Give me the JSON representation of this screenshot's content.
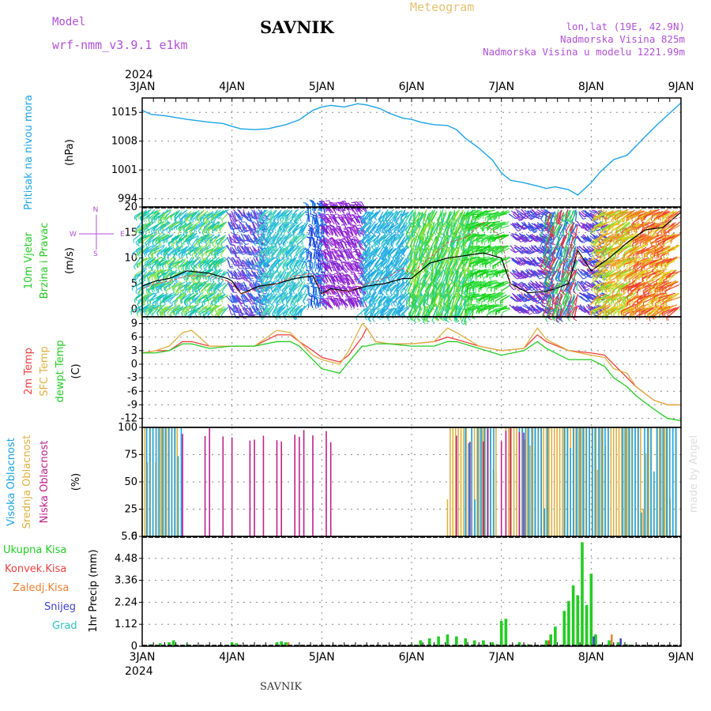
{
  "header": {
    "title": "SAVNIK",
    "meteogram": "Meteogram",
    "model_label": "Model",
    "model_name": "wrf-nmm_v3.9.1 e1km",
    "lonlat": "lon,lat (19E, 42.9N)",
    "elevation": "Nadmorska Visina 825m",
    "model_elevation": "Nadmorska Visina u modelu 1221.99m",
    "watermark": "made by Angel"
  },
  "footer": {
    "station": "SAVNIK"
  },
  "time_axis": {
    "year": "2024",
    "ticks": [
      "3JAN",
      "4JAN",
      "5JAN",
      "6JAN",
      "7JAN",
      "8JAN",
      "9JAN"
    ]
  },
  "colors": {
    "pressure": "#1aa4e8",
    "temp2m": "#f04040",
    "sfc": "#e0b040",
    "dewpt": "#22cc22",
    "high_cloud": "#1aa4e8",
    "mid_cloud": "#e0b040",
    "low_cloud": "#c0208c",
    "total_precip": "#22cc22",
    "convective": "#f04040",
    "frozen": "#f08030",
    "snow": "#4040d0",
    "hail": "#30c0c0"
  },
  "chart_data": [
    {
      "type": "line",
      "panel": "pressure",
      "ylabel": "Pritisak na nivou mora",
      "unit": "(hPa)",
      "yticks": [
        994,
        1001,
        1008,
        1015
      ],
      "ylim": [
        992,
        1018.5
      ],
      "x": [
        0,
        0.1,
        0.25,
        0.5,
        0.75,
        0.9,
        1.0,
        1.1,
        1.25,
        1.4,
        1.6,
        1.75,
        1.9,
        2.0,
        2.1,
        2.25,
        2.4,
        2.5,
        2.65,
        2.75,
        2.9,
        3.0,
        3.1,
        3.25,
        3.4,
        3.5,
        3.6,
        3.75,
        3.9,
        4.0,
        4.1,
        4.25,
        4.4,
        4.5,
        4.6,
        4.75,
        4.85,
        5.0,
        5.1,
        5.25,
        5.4,
        5.5,
        5.6,
        5.75,
        5.9,
        6.0
      ],
      "series": [
        {
          "values": [
            1015.5,
            1014.5,
            1014.2,
            1013.3,
            1012.6,
            1012.3,
            1011.6,
            1011.0,
            1010.8,
            1011.0,
            1012.0,
            1013.2,
            1015.5,
            1016.3,
            1016.7,
            1016.3,
            1017.1,
            1016.8,
            1015.9,
            1014.8,
            1013.6,
            1013.3,
            1012.6,
            1012.0,
            1011.8,
            1010.8,
            1008.7,
            1006.3,
            1003.4,
            1000.3,
            998.5,
            997.9,
            997.1,
            996.5,
            996.9,
            996.2,
            994.9,
            997.9,
            1000.5,
            1003.5,
            1004.6,
            1006.8,
            1009.1,
            1012.3,
            1015.3,
            1017.3
          ]
        }
      ]
    },
    {
      "type": "line",
      "panel": "wind",
      "ylabel": "10m Vjetar",
      "ylabel2": "Brzina i Pravac",
      "unit": "(m/s)",
      "compass": {
        "n": "N",
        "s": "S",
        "e": "E",
        "w": "W"
      },
      "yticks": [
        0,
        5,
        10,
        15,
        20
      ],
      "ylim": [
        -1.5,
        20
      ],
      "x": [
        0,
        0.15,
        0.3,
        0.5,
        0.75,
        0.95,
        1.0,
        1.1,
        1.3,
        1.5,
        1.7,
        1.9,
        2.0,
        2.1,
        2.3,
        2.5,
        2.7,
        2.9,
        3.0,
        3.2,
        3.4,
        3.6,
        3.8,
        4.0,
        4.1,
        4.3,
        4.5,
        4.6,
        4.75,
        4.85,
        5.0,
        5.2,
        5.4,
        5.6,
        5.8,
        6.0
      ],
      "series": [
        {
          "values": [
            4.5,
            5.5,
            6,
            7.5,
            7,
            6,
            5.5,
            3,
            4.5,
            5,
            6,
            6.5,
            3,
            4,
            3.5,
            4.5,
            5,
            6,
            6,
            9,
            10,
            10.5,
            11,
            10,
            5,
            3.2,
            3.5,
            4,
            5,
            11.5,
            7.5,
            10,
            13,
            15.5,
            16,
            19
          ]
        },
        {
          "values": [
            4,
            5,
            5.5,
            6.5,
            6.5,
            5.5,
            5,
            3,
            4,
            5,
            6.5,
            7,
            3,
            3.5,
            3.5,
            5,
            6,
            8,
            7,
            10,
            13,
            14,
            17,
            14,
            5,
            2,
            3,
            4,
            8,
            11,
            7,
            13,
            16,
            16,
            17,
            18
          ]
        }
      ],
      "barbs": [
        {
          "x0": 0.0,
          "x1": 0.95,
          "dir": 220,
          "len": 12,
          "colors": [
            "#10c8a0",
            "#30c0e0",
            "#80e040"
          ]
        },
        {
          "x0": 0.95,
          "x1": 1.35,
          "dir": 300,
          "len": 10,
          "colors": [
            "#3060e8",
            "#8040d8"
          ]
        },
        {
          "x0": 1.35,
          "x1": 1.85,
          "dir": 230,
          "len": 12,
          "colors": [
            "#18b0e8",
            "#30c0d0",
            "#50d8b0"
          ]
        },
        {
          "x0": 1.85,
          "x1": 2.05,
          "dir": 90,
          "len": 10,
          "colors": [
            "#2040e0",
            "#1a80e8"
          ]
        },
        {
          "x0": 2.05,
          "x1": 2.5,
          "dir": 120,
          "len": 11,
          "colors": [
            "#8020d0",
            "#a030d8"
          ]
        },
        {
          "x0": 2.5,
          "x1": 3.0,
          "dir": 230,
          "len": 13,
          "colors": [
            "#20a8e8",
            "#30c0d0"
          ]
        },
        {
          "x0": 3.0,
          "x1": 3.7,
          "dir": 250,
          "len": 15,
          "colors": [
            "#30d040",
            "#80e030",
            "#20d0a0"
          ]
        },
        {
          "x0": 3.7,
          "x1": 4.1,
          "dir": 200,
          "len": 13,
          "colors": [
            "#10d010",
            "#40e050"
          ]
        },
        {
          "x0": 4.1,
          "x1": 4.5,
          "dir": 320,
          "len": 10,
          "colors": [
            "#3050e8",
            "#8030d0"
          ]
        },
        {
          "x0": 4.5,
          "x1": 4.85,
          "dir": 250,
          "len": 13,
          "colors": [
            "#30d060",
            "#e03050",
            "#2070e8"
          ]
        },
        {
          "x0": 4.85,
          "x1": 5.12,
          "dir": 320,
          "len": 10,
          "colors": [
            "#3050e8",
            "#8030d0"
          ]
        },
        {
          "x0": 5.12,
          "x1": 5.5,
          "dir": 210,
          "len": 15,
          "colors": [
            "#80e030",
            "#e0d020",
            "#f09020"
          ]
        },
        {
          "x0": 5.5,
          "x1": 6.0,
          "dir": 210,
          "len": 17,
          "colors": [
            "#f08020",
            "#f04030",
            "#e0d020"
          ]
        }
      ]
    },
    {
      "type": "line",
      "panel": "temperature",
      "ylabels": [
        "2m Temp",
        "SFC Temp",
        "dewpt Temp"
      ],
      "unit": "(C)",
      "yticks": [
        -12,
        -9,
        -6,
        -3,
        0,
        3,
        6,
        9
      ],
      "ylim": [
        -14,
        10.5
      ],
      "x": [
        0,
        0.15,
        0.3,
        0.45,
        0.55,
        0.75,
        1.0,
        1.25,
        1.5,
        1.65,
        1.75,
        1.9,
        2.0,
        2.1,
        2.2,
        2.3,
        2.45,
        2.5,
        2.6,
        2.75,
        3.0,
        3.25,
        3.4,
        3.5,
        3.75,
        4.0,
        4.25,
        4.4,
        4.5,
        4.75,
        5.0,
        5.15,
        5.25,
        5.4,
        5.5,
        5.7,
        5.85,
        6.0
      ],
      "series": [
        {
          "values": [
            2.5,
            3,
            3,
            5,
            5,
            4,
            4,
            4,
            6.5,
            6.5,
            5,
            3,
            1.5,
            1,
            0.5,
            2,
            6,
            8,
            5,
            4.5,
            4.5,
            5,
            6,
            5.5,
            4,
            3,
            3.5,
            6.5,
            5,
            3,
            2.5,
            2,
            0,
            -3,
            -5,
            -8,
            -9,
            -9
          ]
        },
        {
          "values": [
            2.5,
            3,
            4,
            7,
            7.5,
            4,
            4,
            4,
            7.5,
            7,
            5,
            2,
            1,
            0.5,
            0,
            3,
            9,
            8,
            5,
            4.5,
            4.5,
            5,
            8,
            7,
            4,
            3,
            3.5,
            8,
            5.5,
            3,
            2,
            1.5,
            -1,
            -2,
            -5,
            -8,
            -9,
            -9
          ]
        },
        {
          "values": [
            2.5,
            2.5,
            3,
            4.5,
            4.5,
            3.5,
            4,
            4,
            5,
            5,
            4,
            1,
            -1,
            -1.5,
            -2,
            0.5,
            4,
            4,
            4.5,
            4.5,
            4,
            4,
            5,
            5,
            3.5,
            2,
            3,
            5,
            3.5,
            1,
            1,
            -0.5,
            -3,
            -5,
            -7,
            -10,
            -12,
            -12.5
          ]
        }
      ]
    },
    {
      "type": "bar",
      "panel": "clouds",
      "ylabels": [
        "Visoka Oblacnost",
        "Srednja Oblacnost",
        "Niska Oblacnost"
      ],
      "unit": "(%)",
      "yticks": [
        0,
        25,
        50,
        75,
        100
      ],
      "ylim": [
        0,
        100
      ],
      "high_full": [
        [
          0.05,
          0.45
        ],
        [
          3.6,
          3.95
        ],
        [
          4.2,
          4.55
        ],
        [
          4.7,
          5.2
        ],
        [
          5.35,
          5.95
        ]
      ],
      "mid_full": [
        [
          0.0,
          0.4
        ],
        [
          3.4,
          3.95
        ],
        [
          4.05,
          5.95
        ]
      ],
      "low_sparse": [
        [
          0.45,
          2.15
        ],
        [
          3.5,
          3.95
        ],
        [
          4.0,
          4.3
        ]
      ]
    },
    {
      "type": "bar",
      "panel": "precip",
      "ylabels": [
        "Ukupna Kisa",
        "Konvek.Kisa",
        "Zaledj.Kisa",
        "Snijeg",
        "Grad"
      ],
      "ylabel": "1hr Precip",
      "unit": "(mm)",
      "yticks": [
        0,
        1.12,
        2.24,
        3.36,
        4.48,
        5.6
      ],
      "ylim": [
        0,
        5.6
      ],
      "x": [
        0.1,
        0.2,
        0.3,
        0.35,
        0.5,
        1.0,
        1.05,
        1.5,
        1.55,
        1.6,
        3.0,
        3.1,
        3.2,
        3.3,
        3.4,
        3.5,
        3.6,
        3.7,
        3.8,
        3.9,
        3.95,
        4.0,
        4.05,
        4.2,
        4.3,
        4.5,
        4.55,
        4.6,
        4.7,
        4.75,
        4.8,
        4.85,
        4.9,
        4.95,
        5.0,
        5.05,
        5.1,
        5.2,
        5.3,
        5.4
      ],
      "series": [
        {
          "name": "Ukupna Kisa",
          "values": [
            0.1,
            0.15,
            0.2,
            0.3,
            0.1,
            0.2,
            0.15,
            0.2,
            0.25,
            0.2,
            0.1,
            0.3,
            0.4,
            0.5,
            0.6,
            0.5,
            0.4,
            0.3,
            0.3,
            0.2,
            0.1,
            1.3,
            1.4,
            0.2,
            0.1,
            0.3,
            0.6,
            1.0,
            1.8,
            2.3,
            3.1,
            2.6,
            5.3,
            2.1,
            3.7,
            0.6,
            0.1,
            0.3,
            0.2,
            0.1
          ]
        }
      ]
    }
  ]
}
